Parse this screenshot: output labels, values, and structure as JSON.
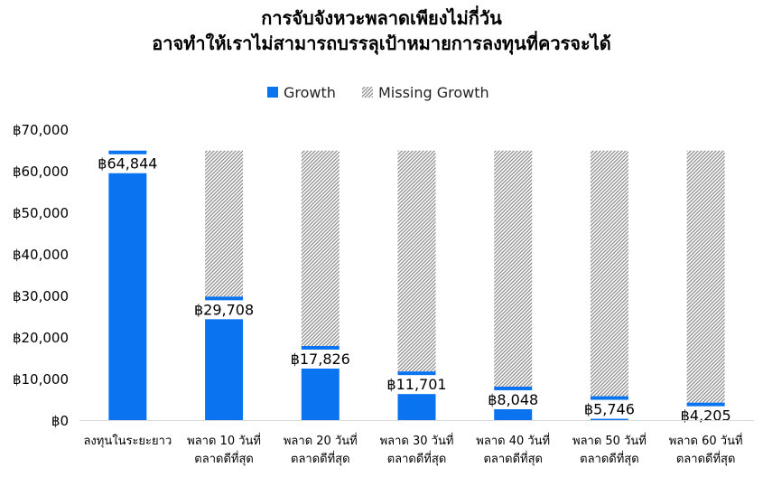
{
  "chart_data": {
    "type": "bar",
    "title_lines": [
      "การจับจังหวะพลาดเพียงไม่กี่วัน",
      "อาจทำให้เราไม่สามารถบรรลุเป้าหมายการลงทุนที่ควรจะได้"
    ],
    "legend": [
      "Growth",
      "Missing Growth"
    ],
    "legend_position": "top",
    "ylim": [
      0,
      70000
    ],
    "yticks": [
      0,
      10000,
      20000,
      30000,
      40000,
      50000,
      60000,
      70000
    ],
    "ytick_labels": [
      "฿0",
      "฿10,000",
      "฿20,000",
      "฿30,000",
      "฿40,000",
      "฿50,000",
      "฿60,000",
      "฿70,000"
    ],
    "grid": false,
    "categories": [
      [
        "ลงทุนในระยะยาว"
      ],
      [
        "พลาด 10 วันที่",
        "ตลาดดีที่สุด"
      ],
      [
        "พลาด 20 วันที่",
        "ตลาดดีที่สุด"
      ],
      [
        "พลาด 30 วันที่",
        "ตลาดดีที่สุด"
      ],
      [
        "พลาด 40 วันที่",
        "ตลาดดีที่สุด"
      ],
      [
        "พลาด 50 วันที่",
        "ตลาดดีที่สุด"
      ],
      [
        "พลาด 60 วันที่",
        "ตลาดดีที่สุด"
      ]
    ],
    "series": [
      {
        "name": "Growth",
        "values": [
          64844,
          29708,
          17826,
          11701,
          8048,
          5746,
          4205
        ]
      },
      {
        "name": "Missing Growth",
        "values": [
          0,
          35136,
          47018,
          53143,
          56796,
          59098,
          60639
        ]
      }
    ],
    "data_labels": [
      "฿64,844",
      "฿29,708",
      "฿17,826",
      "฿11,701",
      "฿8,048",
      "฿5,746",
      "฿4,205"
    ],
    "colors": {
      "growth": "#0a74f0",
      "missing_pattern": "#8c8c8c",
      "text": "#000000",
      "axis": "#d9d9d9"
    }
  }
}
